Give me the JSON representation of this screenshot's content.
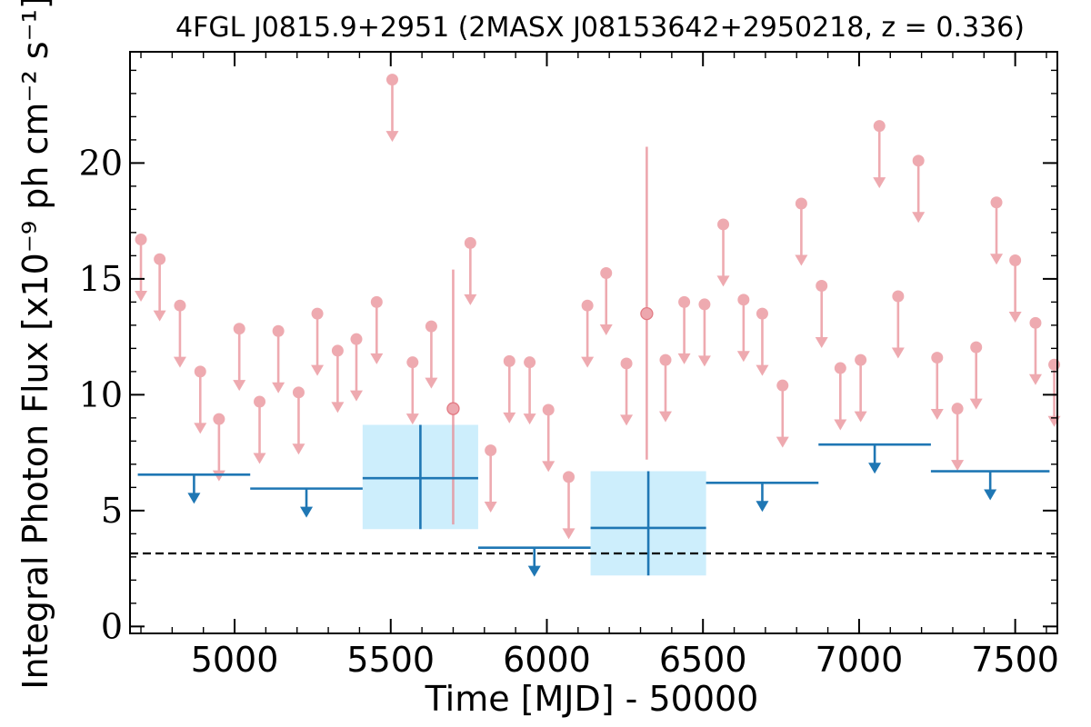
{
  "chart_data": {
    "type": "scatter",
    "title": "4FGL J0815.9+2951 (2MASX J08153642+2950218, z = 0.336)",
    "xlabel": "Time [MJD] - 50000",
    "ylabel": "Integral Photon Flux [x10⁻⁹ ph cm⁻² s⁻¹]",
    "xlim": [
      4665,
      7635
    ],
    "ylim": [
      -0.3,
      24.8
    ],
    "x_ticks": [
      5000,
      5500,
      6000,
      6500,
      7000,
      7500
    ],
    "y_ticks": [
      0,
      5,
      10,
      15,
      20
    ],
    "x_tick_labels": [
      "5000",
      "5500",
      "6000",
      "6500",
      "7000",
      "7500"
    ],
    "y_tick_labels": [
      "0",
      "5",
      "10",
      "15",
      "20"
    ],
    "reference_level": 3.15,
    "colors": {
      "short_bins": "#e88a93",
      "long_bins": "#1f77b4",
      "long_bin_band": "#cdeefc",
      "reference_line": "#000000"
    },
    "series": [
      {
        "kind": "long-bin",
        "upper_limits": [
          {
            "x": 4870,
            "x_lo": 4690,
            "x_hi": 5050,
            "y": 6.55
          },
          {
            "x": 5230,
            "x_lo": 5050,
            "x_hi": 5410,
            "y": 5.95
          },
          {
            "x": 5960,
            "x_lo": 5780,
            "x_hi": 6140,
            "y": 3.4
          },
          {
            "x": 6690,
            "x_lo": 6510,
            "x_hi": 6870,
            "y": 6.2
          },
          {
            "x": 7050,
            "x_lo": 6870,
            "x_hi": 7230,
            "y": 7.85
          },
          {
            "x": 7420,
            "x_lo": 7230,
            "x_hi": 7610,
            "y": 6.7
          }
        ],
        "detections": [
          {
            "x": 5595,
            "x_lo": 5410,
            "x_hi": 5780,
            "y": 6.4,
            "y_lo": 4.2,
            "y_hi": 8.7
          },
          {
            "x": 6325,
            "x_lo": 6140,
            "x_hi": 6510,
            "y": 4.25,
            "y_lo": 2.2,
            "y_hi": 6.7
          }
        ]
      },
      {
        "kind": "short-bin",
        "upper_limits": [
          {
            "x": 4700,
            "y": 16.7
          },
          {
            "x": 4760,
            "y": 15.85
          },
          {
            "x": 4825,
            "y": 13.85
          },
          {
            "x": 4890,
            "y": 11.0
          },
          {
            "x": 4950,
            "y": 8.95
          },
          {
            "x": 5015,
            "y": 12.85
          },
          {
            "x": 5080,
            "y": 9.7
          },
          {
            "x": 5140,
            "y": 12.75
          },
          {
            "x": 5205,
            "y": 10.1
          },
          {
            "x": 5265,
            "y": 13.5
          },
          {
            "x": 5330,
            "y": 11.9
          },
          {
            "x": 5390,
            "y": 12.4
          },
          {
            "x": 5455,
            "y": 14.0
          },
          {
            "x": 5505,
            "y": 23.6
          },
          {
            "x": 5570,
            "y": 11.4
          },
          {
            "x": 5630,
            "y": 12.95
          },
          {
            "x": 5755,
            "y": 16.55
          },
          {
            "x": 5820,
            "y": 7.6
          },
          {
            "x": 5880,
            "y": 11.45
          },
          {
            "x": 5945,
            "y": 11.4
          },
          {
            "x": 6005,
            "y": 9.35
          },
          {
            "x": 6070,
            "y": 6.45
          },
          {
            "x": 6130,
            "y": 13.85
          },
          {
            "x": 6190,
            "y": 15.25
          },
          {
            "x": 6255,
            "y": 11.35
          },
          {
            "x": 6380,
            "y": 11.5
          },
          {
            "x": 6440,
            "y": 14.0
          },
          {
            "x": 6505,
            "y": 13.9
          },
          {
            "x": 6565,
            "y": 17.35
          },
          {
            "x": 6630,
            "y": 14.1
          },
          {
            "x": 6690,
            "y": 13.5
          },
          {
            "x": 6755,
            "y": 10.4
          },
          {
            "x": 6815,
            "y": 18.25
          },
          {
            "x": 6880,
            "y": 14.7
          },
          {
            "x": 6940,
            "y": 11.15
          },
          {
            "x": 7005,
            "y": 11.5
          },
          {
            "x": 7065,
            "y": 21.6
          },
          {
            "x": 7125,
            "y": 14.25
          },
          {
            "x": 7190,
            "y": 20.1
          },
          {
            "x": 7250,
            "y": 11.6
          },
          {
            "x": 7315,
            "y": 9.4
          },
          {
            "x": 7375,
            "y": 12.05
          },
          {
            "x": 7440,
            "y": 18.3
          },
          {
            "x": 7500,
            "y": 15.8
          },
          {
            "x": 7565,
            "y": 13.1
          },
          {
            "x": 7625,
            "y": 11.3
          }
        ],
        "detections": [
          {
            "x": 5700,
            "y": 9.4,
            "y_lo": 4.4,
            "y_hi": 15.4
          },
          {
            "x": 6320,
            "y": 13.5,
            "y_lo": 7.2,
            "y_hi": 20.7
          }
        ]
      }
    ]
  }
}
